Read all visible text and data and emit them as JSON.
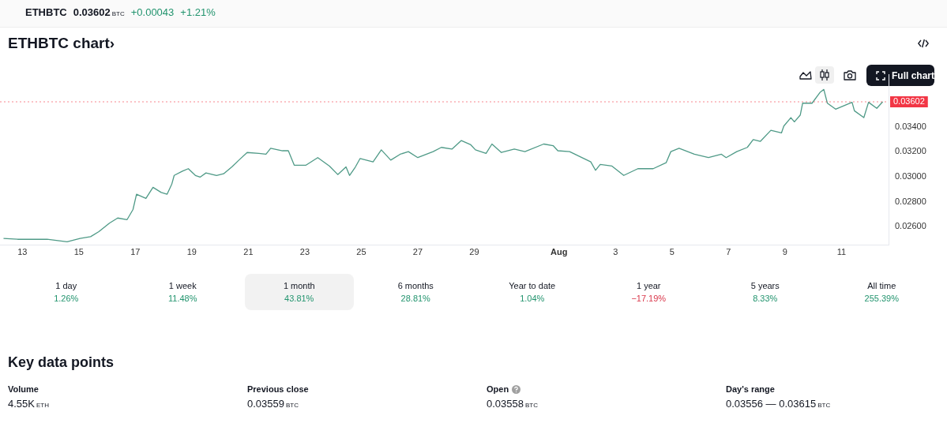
{
  "chart_data": {
    "type": "line",
    "title": "ETHBTC chart›",
    "x": [
      "--07-12T08:00",
      "--07-12T20:00",
      "--07-13T05:00",
      "--07-13T21:00",
      "--07-14T14:00",
      "--07-15T01:00",
      "--07-15T10:00",
      "--07-15T17:00",
      "--07-16T02:00",
      "--07-16T09:00",
      "--07-16T17:00",
      "--07-16T22:00",
      "--07-17T01:00",
      "--07-17T09:00",
      "--07-17T15:00",
      "--07-17T22:00",
      "--07-18T03:00",
      "--07-18T07:00",
      "--07-18T09:00",
      "--07-18T16:00",
      "--07-18T21:00",
      "--07-19T03:00",
      "--07-19T07:00",
      "--07-19T12:00",
      "--07-19T21:00",
      "--07-20T03:00",
      "--07-20T10:00",
      "--07-20T16:00",
      "--07-20T23:00",
      "--07-21T09:00",
      "--07-21T15:00",
      "--07-21T19:00",
      "--07-22T05:00",
      "--07-22T10:00",
      "--07-22T15:00",
      "--07-23T01:00",
      "--07-23T11:00",
      "--07-23T21:00",
      "--07-24T04:00",
      "--07-24T11:00",
      "--07-24T14:00",
      "--07-24T19:00",
      "--07-24T23:00",
      "--07-25T10:00",
      "--07-25T17:00",
      "--07-26T01:00",
      "--07-26T09:00",
      "--07-26T16:00",
      "--07-27T00:00",
      "--07-27T13:00",
      "--07-27T20:00",
      "--07-28T05:00",
      "--07-28T13:00",
      "--07-28T21:00",
      "--07-29T01:00",
      "--07-29T10:00",
      "--07-29T15:00",
      "--07-29T23:00",
      "--07-30T10:00",
      "--07-30T19:00",
      "--07-31T11:00",
      "--07-31T19:00",
      "--07-31T23:00",
      "--08-01T09:00",
      "--08-01T18:00",
      "--08-02T03:00",
      "--08-02T07:00",
      "--08-02T11:00",
      "--08-02T21:00",
      "--08-03T07:00",
      "--08-03T19:00",
      "--08-04T08:00",
      "--08-04T19:00",
      "--08-04T23:00",
      "--08-05T06:00",
      "--08-05T19:00",
      "--08-06T07:00",
      "--08-06T18:00",
      "--08-06T22:00",
      "--08-07T07:00",
      "--08-07T16:00",
      "--08-07T21:00",
      "--08-08T03:00",
      "--08-08T12:00",
      "--08-08T21:00",
      "--08-08T23:00",
      "--08-09T05:00",
      "--08-09T08:00",
      "--08-09T13:00",
      "--08-09T15:00",
      "--08-09T23:00",
      "--08-10T06:00",
      "--08-10T09:00",
      "--08-10T12:00",
      "--08-10T19:00",
      "--08-11T09:00",
      "--08-11T11:00",
      "--08-11T19:00",
      "--08-11T23:00",
      "--08-12T06:00",
      "--08-12T11:00"
    ],
    "series": [
      {
        "color": "#4f9a87",
        "values": [
          0.02505,
          0.02498,
          0.02498,
          0.02498,
          0.02478,
          0.02505,
          0.02519,
          0.0256,
          0.02628,
          0.02669,
          0.02656,
          0.02737,
          0.0286,
          0.02826,
          0.02915,
          0.02874,
          0.0286,
          0.02942,
          0.03011,
          0.03045,
          0.03065,
          0.03011,
          0.02997,
          0.03031,
          0.03011,
          0.03024,
          0.03079,
          0.03134,
          0.03195,
          0.03188,
          0.03181,
          0.03229,
          0.03209,
          0.03209,
          0.03093,
          0.03093,
          0.03154,
          0.03086,
          0.03018,
          0.03079,
          0.03011,
          0.03079,
          0.03147,
          0.0312,
          0.03216,
          0.03134,
          0.03181,
          0.03202,
          0.03154,
          0.03202,
          0.03236,
          0.03222,
          0.03291,
          0.03257,
          0.03216,
          0.03188,
          0.03263,
          0.03195,
          0.03222,
          0.03202,
          0.03263,
          0.0325,
          0.03209,
          0.03202,
          0.03161,
          0.0312,
          0.03052,
          0.03099,
          0.03086,
          0.03011,
          0.03065,
          0.03065,
          0.03113,
          0.03202,
          0.03229,
          0.03181,
          0.03154,
          0.03181,
          0.03154,
          0.03202,
          0.03236,
          0.03298,
          0.03284,
          0.03373,
          0.03352,
          0.03407,
          0.03475,
          0.03441,
          0.03496,
          0.03591,
          0.03591,
          0.0368,
          0.03701,
          0.03591,
          0.03543,
          0.03598,
          0.0353,
          0.03475,
          0.03598,
          0.0355,
          0.03602
        ]
      }
    ],
    "xlim": [
      "--07-12T05:00",
      "--08-12T16:00"
    ],
    "ylim": [
      0.0245,
      0.0382
    ],
    "xticks": [
      {
        "value": "--07-13",
        "label": "13"
      },
      {
        "value": "--07-15",
        "label": "15"
      },
      {
        "value": "--07-17",
        "label": "17"
      },
      {
        "value": "--07-19",
        "label": "19"
      },
      {
        "value": "--07-21",
        "label": "21"
      },
      {
        "value": "--07-23",
        "label": "23"
      },
      {
        "value": "--07-25",
        "label": "25"
      },
      {
        "value": "--07-27",
        "label": "27"
      },
      {
        "value": "--07-29",
        "label": "29"
      },
      {
        "value": "--08-01",
        "label": "Aug"
      },
      {
        "value": "--08-03",
        "label": "3"
      },
      {
        "value": "--08-05",
        "label": "5"
      },
      {
        "value": "--08-07",
        "label": "7"
      },
      {
        "value": "--08-09",
        "label": "9"
      },
      {
        "value": "--08-11",
        "label": "11"
      }
    ],
    "yticks": [
      {
        "value": 0.026,
        "label": "0.02600"
      },
      {
        "value": 0.028,
        "label": "0.02800"
      },
      {
        "value": 0.03,
        "label": "0.03000"
      },
      {
        "value": 0.032,
        "label": "0.03200"
      },
      {
        "value": 0.034,
        "label": "0.03400"
      }
    ],
    "ref_lines": [
      {
        "axis": "y",
        "value": 0.03602,
        "label": "0.03602",
        "color": "#f23645"
      }
    ],
    "grid": false,
    "legend": false,
    "marker": "none",
    "line_style": "solid",
    "annotations": [
      "ETHBTC",
      "0.03602",
      "BTC",
      "+0.00043",
      "+1.21%",
      "1 day",
      "1.26%",
      "1 week",
      "11.48%",
      "1 month",
      "43.81%",
      "6 months",
      "28.81%",
      "Year to date",
      "1.04%",
      "1 year",
      "−17.19%",
      "5 years",
      "8.33%",
      "All time",
      "255.39%",
      "Key data points",
      "Volume",
      "4.55K",
      "ETH",
      "Previous close",
      "0.03559",
      "BTC",
      "Open",
      "0.03558",
      "BTC",
      "Day's range",
      "0.03556 — 0.03615",
      "BTC",
      "Full chart"
    ]
  }
}
